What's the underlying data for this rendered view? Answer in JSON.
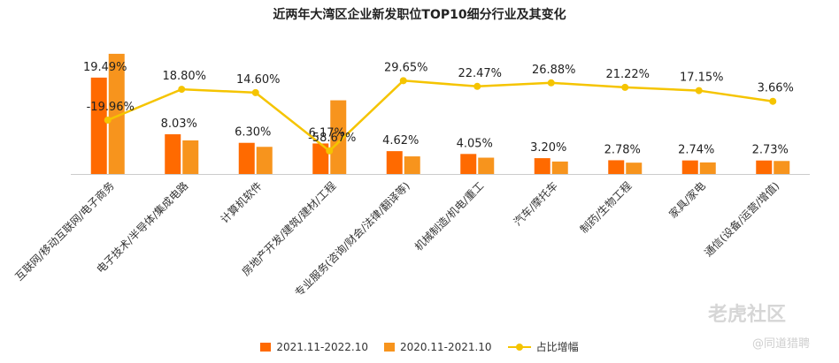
{
  "chart_data": {
    "type": "bar",
    "title": "近两年大湾区企业新发职位TOP10细分行业及其变化",
    "categories": [
      "互联网/移动互联网/电子商务",
      "电子技术/半导体/集成电路",
      "计算机软件",
      "房地产开发/建筑/建材/工程",
      "专业服务(咨询/财会/法律/翻译等)",
      "机械制造/机电/重工",
      "汽车/摩托车",
      "制药/生物工程",
      "家具/家电",
      "通信(设备/运营/增值)"
    ],
    "series": [
      {
        "name": "2021.11-2022.10",
        "type": "bar",
        "color": "#FF6A00",
        "values": [
          19.49,
          8.03,
          6.3,
          6.17,
          4.62,
          4.05,
          3.2,
          2.78,
          2.74,
          2.73
        ],
        "labels": [
          "19.49%",
          "8.03%",
          "6.30%",
          "6.17%",
          "4.62%",
          "4.05%",
          "3.20%",
          "2.78%",
          "2.74%",
          "2.73%"
        ]
      },
      {
        "name": "2020.11-2021.10",
        "type": "bar",
        "color": "#F7941D",
        "values": [
          24.3,
          6.79,
          5.49,
          14.9,
          3.56,
          3.3,
          2.52,
          2.29,
          2.34,
          2.63
        ]
      },
      {
        "name": "占比增幅",
        "type": "line",
        "color": "#F5C400",
        "values": [
          -19.96,
          18.8,
          14.6,
          -58.67,
          29.65,
          22.47,
          26.88,
          21.22,
          17.15,
          3.66
        ],
        "labels": [
          "-19.96%",
          "18.80%",
          "14.60%",
          "-58.67%",
          "29.65%",
          "22.47%",
          "26.88%",
          "21.22%",
          "17.15%",
          "3.66%"
        ]
      }
    ],
    "y_bar_range": [
      0,
      25
    ],
    "y_line_range": [
      -65,
      40
    ],
    "legend_position": "bottom",
    "grid": false
  },
  "watermark": {
    "main": "老虎社区",
    "sub": "@同道猎聘"
  }
}
